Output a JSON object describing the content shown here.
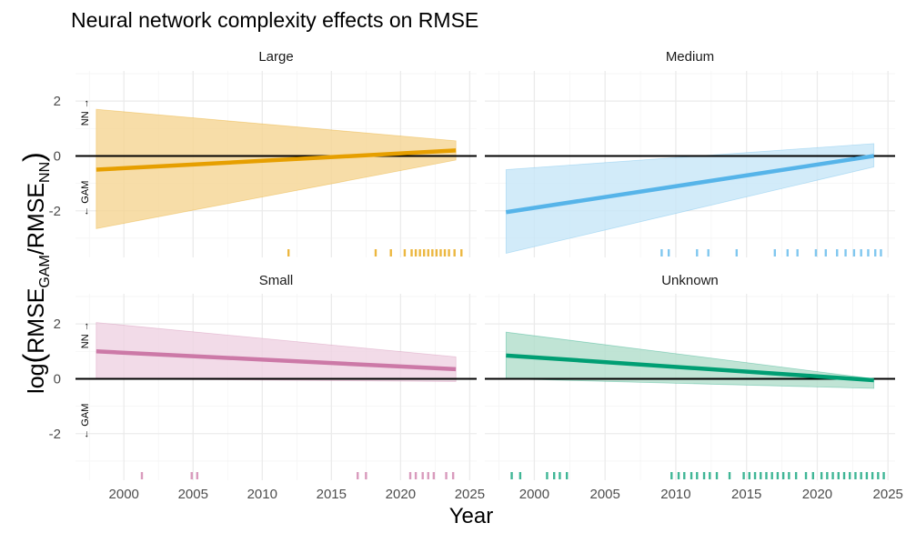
{
  "chart_data": {
    "type": "line",
    "title": "Neural network complexity effects on RMSE",
    "xlabel": "Year",
    "ylabel_parts": {
      "log": "log",
      "rmse": "RMSE",
      "gam": "GAM",
      "slash": "/",
      "nn": "NN"
    },
    "xlim": [
      1996.5,
      2025.5
    ],
    "ylim": [
      -3.7,
      3.1
    ],
    "x_ticks": [
      2000,
      2005,
      2010,
      2015,
      2020,
      2025
    ],
    "x_tick_labels": [
      "2000",
      "2005",
      "2010",
      "2015",
      "2020",
      "2025"
    ],
    "y_ticks": [
      -2,
      0,
      2
    ],
    "y_tick_labels": [
      "-2",
      "0",
      "2"
    ],
    "annotation_up": "NN →",
    "annotation_down": "← GAM",
    "panels": [
      {
        "name": "Large",
        "color": "#E69F00",
        "fill": "#F5D592",
        "x": [
          1998,
          2024
        ],
        "fit": [
          -0.5,
          0.2
        ],
        "lower": [
          -2.65,
          -0.15
        ],
        "upper": [
          1.7,
          0.55
        ],
        "rug": [
          2011.9,
          2018.2,
          2019.3,
          2020.3,
          2020.8,
          2021.1,
          2021.4,
          2021.7,
          2022.0,
          2022.3,
          2022.6,
          2022.9,
          2023.2,
          2023.5,
          2023.9,
          2024.4
        ]
      },
      {
        "name": "Medium",
        "color": "#56B4E9",
        "fill": "#C7E6F7",
        "x": [
          1998,
          2024
        ],
        "fit": [
          -2.05,
          0.0
        ],
        "lower": [
          -3.55,
          -0.4
        ],
        "upper": [
          -0.5,
          0.45
        ],
        "rug": [
          2009.0,
          2009.5,
          2011.5,
          2012.3,
          2014.3,
          2017.0,
          2017.9,
          2018.6,
          2019.9,
          2020.6,
          2021.4,
          2022.0,
          2022.6,
          2023.1,
          2023.6,
          2024.1,
          2024.5
        ]
      },
      {
        "name": "Small",
        "color": "#CC79A7",
        "fill": "#EFD2E2",
        "x": [
          1998,
          2024
        ],
        "fit": [
          1.0,
          0.35
        ],
        "lower": [
          0.0,
          -0.1
        ],
        "upper": [
          2.05,
          0.8
        ],
        "rug": [
          2001.3,
          2004.9,
          2005.3,
          2016.9,
          2017.5,
          2020.7,
          2021.1,
          2021.6,
          2022.0,
          2022.4,
          2023.3,
          2023.8
        ]
      },
      {
        "name": "Unknown",
        "color": "#009E73",
        "fill": "#B0DDCB",
        "x": [
          1998,
          2024
        ],
        "fit": [
          0.85,
          -0.05
        ],
        "lower": [
          0.0,
          -0.35
        ],
        "upper": [
          1.7,
          0.0
        ],
        "rug": [
          1998.4,
          1999.0,
          2000.9,
          2001.4,
          2001.8,
          2002.3,
          2009.7,
          2010.2,
          2010.6,
          2011.1,
          2011.5,
          2012.0,
          2012.4,
          2012.9,
          2013.8,
          2014.8,
          2015.2,
          2015.6,
          2016.0,
          2016.4,
          2016.8,
          2017.2,
          2017.6,
          2018.0,
          2018.5,
          2019.2,
          2019.7,
          2020.3,
          2020.7,
          2021.1,
          2021.5,
          2021.9,
          2022.3,
          2022.7,
          2023.1,
          2023.5,
          2023.9,
          2024.3,
          2024.7
        ]
      }
    ]
  }
}
